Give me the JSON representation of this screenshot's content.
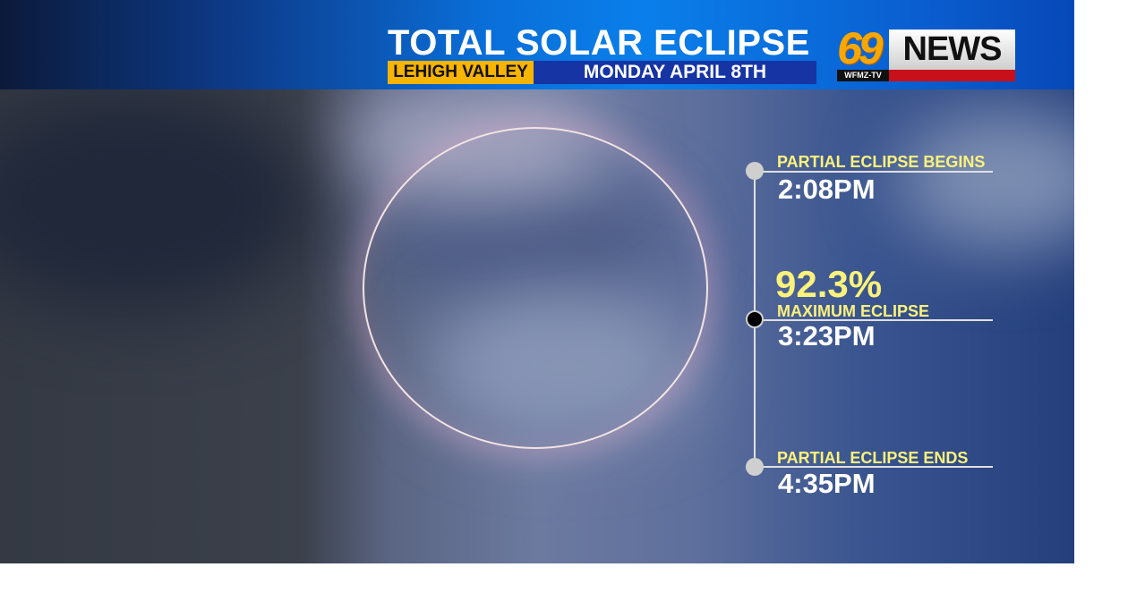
{
  "header": {
    "title": "TOTAL SOLAR ECLIPSE",
    "location": "LEHIGH VALLEY",
    "date": "MONDAY APRIL 8TH"
  },
  "logo": {
    "number": "69",
    "word": "NEWS",
    "callsign": "WFMZ-TV"
  },
  "timeline": {
    "begin": {
      "label": "PARTIAL ECLIPSE BEGINS",
      "time": "2:08PM"
    },
    "max": {
      "percent": "92.3%",
      "label": "MAXIMUM ECLIPSE",
      "time": "3:23PM"
    },
    "end": {
      "label": "PARTIAL ECLIPSE ENDS",
      "time": "4:35PM"
    }
  },
  "colors": {
    "accent_yellow": "#fbf27c",
    "location_bg": "#f7b400",
    "date_bg": "#1634a4",
    "header_blue": "#0a7fea"
  }
}
